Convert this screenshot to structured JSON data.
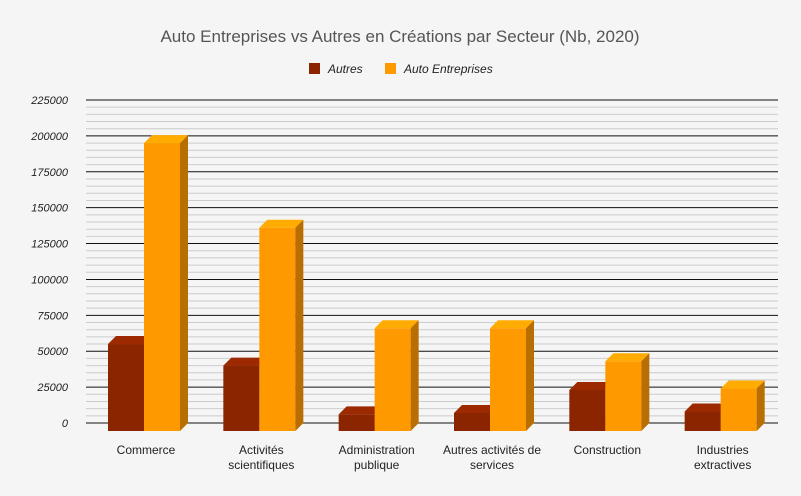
{
  "colors": {
    "autres": "#8b2500",
    "auto": "#ff9900",
    "grid_major": "#111111",
    "grid_minor": "#cccccc",
    "background": "#f5f5f5"
  },
  "chart_data": {
    "type": "bar",
    "title": "Auto Entreprises vs Autres en Créations par Secteur (Nb, 2020)",
    "xlabel": "",
    "ylabel": "",
    "categories": [
      [
        "Commerce"
      ],
      [
        "Activités",
        "scientifiques"
      ],
      [
        "Administration",
        "publique"
      ],
      [
        "Autres activités de",
        "services"
      ],
      [
        "Construction"
      ],
      [
        "Industries",
        "extractives"
      ]
    ],
    "series": [
      {
        "name": "Autres",
        "color_key": "autres",
        "values": [
          55000,
          40000,
          6000,
          7000,
          23000,
          8000
        ]
      },
      {
        "name": "Auto Entreprises",
        "color_key": "auto",
        "values": [
          195000,
          136000,
          66000,
          66000,
          43000,
          24000
        ]
      }
    ],
    "ylim": [
      0,
      225000
    ],
    "yticks": [
      0,
      25000,
      50000,
      75000,
      100000,
      125000,
      150000,
      175000,
      200000,
      225000
    ],
    "legend_position": "top-center",
    "grid": true,
    "style": "3d"
  }
}
